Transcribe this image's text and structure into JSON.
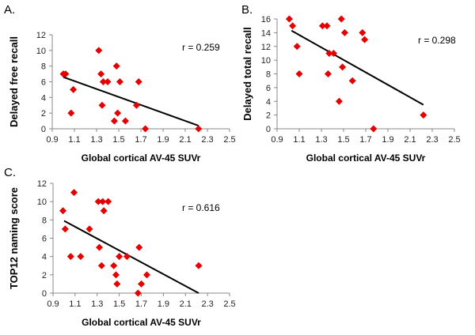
{
  "figure": {
    "panel_labels": [
      "A.",
      "B.",
      "C."
    ]
  },
  "chart_data": [
    {
      "type": "scatter",
      "panel": "A.",
      "xlabel": "Global cortical AV-45 SUVr",
      "ylabel": "Delayed free recall",
      "xlim": [
        0.9,
        2.5
      ],
      "ylim": [
        0,
        12
      ],
      "xticks": [
        "0.9",
        "1.1",
        "1.3",
        "1.5",
        "1.7",
        "1.9",
        "2.1",
        "2.3",
        "2.5"
      ],
      "yticks": [
        "0",
        "2",
        "4",
        "6",
        "8",
        "10",
        "12"
      ],
      "marker_color": "#e60000",
      "points": [
        [
          1.0,
          7
        ],
        [
          1.02,
          7
        ],
        [
          1.07,
          2
        ],
        [
          1.09,
          5
        ],
        [
          1.32,
          10
        ],
        [
          1.34,
          7
        ],
        [
          1.35,
          3
        ],
        [
          1.36,
          6
        ],
        [
          1.4,
          6
        ],
        [
          1.46,
          1
        ],
        [
          1.48,
          8
        ],
        [
          1.49,
          2
        ],
        [
          1.51,
          6
        ],
        [
          1.56,
          1
        ],
        [
          1.66,
          3
        ],
        [
          1.68,
          6
        ],
        [
          1.74,
          0
        ],
        [
          2.22,
          0
        ]
      ],
      "fit_line": {
        "x": [
          1.0,
          2.22
        ],
        "y": [
          6.6,
          0.4
        ]
      },
      "annotation": "r = 0.259"
    },
    {
      "type": "scatter",
      "panel": "B.",
      "xlabel": "Global cortical AV-45 SUVr",
      "ylabel": "Delayed total recall",
      "xlim": [
        0.9,
        2.5
      ],
      "ylim": [
        0,
        16
      ],
      "xticks": [
        "0.9",
        "1.1",
        "1.3",
        "1.5",
        "1.7",
        "1.9",
        "2.1",
        "2.3",
        "2.5"
      ],
      "yticks": [
        "0",
        "2",
        "4",
        "6",
        "8",
        "10",
        "12",
        "14",
        "16"
      ],
      "marker_color": "#e60000",
      "points": [
        [
          1.01,
          16
        ],
        [
          1.04,
          15
        ],
        [
          1.08,
          12
        ],
        [
          1.1,
          8
        ],
        [
          1.31,
          15
        ],
        [
          1.35,
          15
        ],
        [
          1.36,
          8
        ],
        [
          1.37,
          11
        ],
        [
          1.41,
          11
        ],
        [
          1.46,
          4
        ],
        [
          1.48,
          16
        ],
        [
          1.49,
          9
        ],
        [
          1.51,
          14
        ],
        [
          1.58,
          7
        ],
        [
          1.67,
          14
        ],
        [
          1.69,
          13
        ],
        [
          1.77,
          0
        ],
        [
          2.22,
          2
        ]
      ],
      "fit_line": {
        "x": [
          1.03,
          2.22
        ],
        "y": [
          14.3,
          3.5
        ]
      },
      "annotation": "r = 0.298"
    },
    {
      "type": "scatter",
      "panel": "C.",
      "xlabel": "Global cortical AV-45 SUVr",
      "ylabel": "TOP12 naming score",
      "xlim": [
        0.9,
        2.5
      ],
      "ylim": [
        0,
        12
      ],
      "xticks": [
        "0.9",
        "1.1",
        "1.3",
        "1.5",
        "1.7",
        "1.9",
        "2.1",
        "2.3",
        "2.5"
      ],
      "yticks": [
        "0",
        "2",
        "4",
        "6",
        "8",
        "10",
        "12"
      ],
      "marker_color": "#e60000",
      "points": [
        [
          0.99,
          9
        ],
        [
          1.01,
          7
        ],
        [
          1.06,
          4
        ],
        [
          1.09,
          11
        ],
        [
          1.15,
          4
        ],
        [
          1.23,
          7
        ],
        [
          1.31,
          10
        ],
        [
          1.32,
          5
        ],
        [
          1.34,
          3
        ],
        [
          1.35,
          10
        ],
        [
          1.36,
          9
        ],
        [
          1.4,
          10
        ],
        [
          1.45,
          3
        ],
        [
          1.47,
          2
        ],
        [
          1.48,
          1
        ],
        [
          1.5,
          4
        ],
        [
          1.57,
          4
        ],
        [
          1.67,
          0
        ],
        [
          1.68,
          5
        ],
        [
          1.7,
          1
        ],
        [
          1.75,
          2
        ],
        [
          2.22,
          3
        ]
      ],
      "fit_line": {
        "x": [
          1.0,
          2.22
        ],
        "y": [
          7.9,
          0
        ]
      },
      "annotation": "r = 0.616"
    }
  ]
}
